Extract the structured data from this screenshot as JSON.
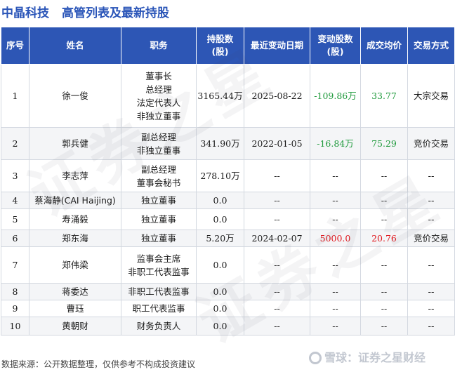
{
  "header": {
    "company": "中晶科技",
    "title": "高管列表及最新持股"
  },
  "table": {
    "columns": [
      "序号",
      "姓名",
      "职务",
      "持股数\n(股)",
      "最近变动日期",
      "变动股数\n(股)",
      "成交均价",
      "交易方式"
    ],
    "rows": [
      {
        "no": "1",
        "name": "徐一俊",
        "roles": [
          "董事长",
          "总经理",
          "法定代表人",
          "非独立董事"
        ],
        "shares": "3165.44万",
        "date": "2025-08-22",
        "change": "-109.86万",
        "change_dir": "neg",
        "price": "33.77",
        "price_dir": "neg",
        "method": "大宗交易"
      },
      {
        "no": "2",
        "name": "郭兵健",
        "roles": [
          "副总经理",
          "非独立董事"
        ],
        "shares": "341.90万",
        "date": "2022-01-05",
        "change": "-16.84万",
        "change_dir": "neg",
        "price": "75.29",
        "price_dir": "neg",
        "method": "竞价交易"
      },
      {
        "no": "3",
        "name": "李志萍",
        "roles": [
          "副总经理",
          "董事会秘书"
        ],
        "shares": "278.10万",
        "date": "--",
        "change": "--",
        "change_dir": "",
        "price": "--",
        "price_dir": "",
        "method": "--"
      },
      {
        "no": "4",
        "name": "蔡海静(CAI Haijing)",
        "roles": [
          "独立董事"
        ],
        "shares": "0.0",
        "date": "--",
        "change": "--",
        "change_dir": "",
        "price": "--",
        "price_dir": "",
        "method": "--"
      },
      {
        "no": "5",
        "name": "寿涌毅",
        "roles": [
          "独立董事"
        ],
        "shares": "0.0",
        "date": "--",
        "change": "--",
        "change_dir": "",
        "price": "--",
        "price_dir": "",
        "method": "--"
      },
      {
        "no": "6",
        "name": "郑东海",
        "roles": [
          "独立董事"
        ],
        "shares": "5.20万",
        "date": "2024-02-07",
        "change": "5000.0",
        "change_dir": "pos",
        "price": "20.76",
        "price_dir": "pos",
        "method": "竞价交易"
      },
      {
        "no": "7",
        "name": "郑伟梁",
        "roles": [
          "监事会主席",
          "非职工代表监事"
        ],
        "shares": "0.0",
        "date": "--",
        "change": "--",
        "change_dir": "",
        "price": "--",
        "price_dir": "",
        "method": "--"
      },
      {
        "no": "8",
        "name": "蒋委达",
        "roles": [
          "非职工代表监事"
        ],
        "shares": "0.0",
        "date": "--",
        "change": "--",
        "change_dir": "",
        "price": "--",
        "price_dir": "",
        "method": "--"
      },
      {
        "no": "9",
        "name": "曹珏",
        "roles": [
          "职工代表监事"
        ],
        "shares": "0.0",
        "date": "--",
        "change": "--",
        "change_dir": "",
        "price": "--",
        "price_dir": "",
        "method": "--"
      },
      {
        "no": "10",
        "name": "黄朝财",
        "roles": [
          "财务负责人"
        ],
        "shares": "0.0",
        "date": "--",
        "change": "--",
        "change_dir": "",
        "price": "--",
        "price_dir": "",
        "method": "--"
      }
    ]
  },
  "watermark": "证券之星",
  "footer": {
    "source": "数据来源：公开数据整理，仅供参考不构成投资建议",
    "brand": "雪球：证券之星财经"
  },
  "colors": {
    "header_bg": "#2d56b5",
    "title": "#2a55b8",
    "positive": "#e0161c",
    "negative": "#1f9a3c"
  }
}
